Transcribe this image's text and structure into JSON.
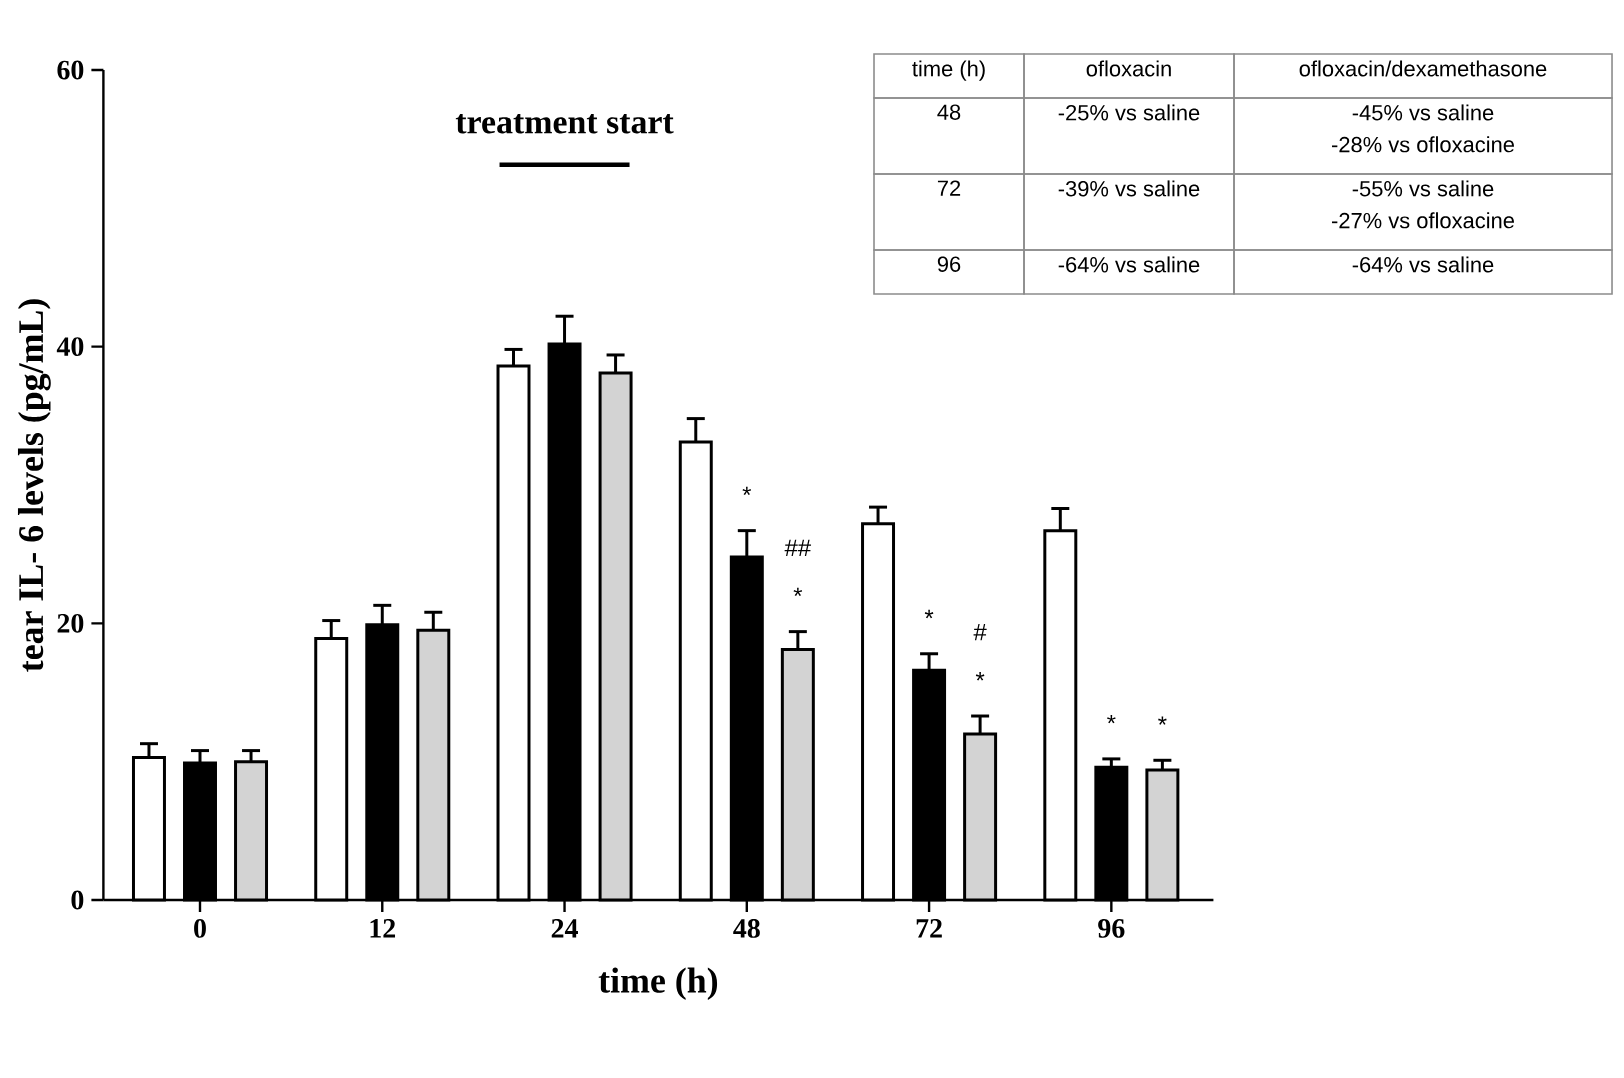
{
  "chart_data": {
    "type": "bar",
    "xlabel": "time (h)",
    "ylabel": "tear IL- 6 levels (pg/mL)",
    "categories": [
      "0",
      "12",
      "24",
      "48",
      "72",
      "96"
    ],
    "ylim": [
      0,
      60
    ],
    "yticks": [
      0,
      20,
      40,
      60
    ],
    "series": [
      {
        "color": "#ffffff",
        "values": [
          10.3,
          18.9,
          38.6,
          33.1,
          27.2,
          26.7
        ],
        "errors": [
          1.0,
          1.3,
          1.2,
          1.7,
          1.2,
          1.6
        ]
      },
      {
        "color": "#000000",
        "values": [
          9.9,
          19.9,
          40.2,
          24.8,
          16.6,
          9.6
        ],
        "errors": [
          0.9,
          1.4,
          2.0,
          1.9,
          1.2,
          0.6
        ]
      },
      {
        "color": "#d3d3d3",
        "values": [
          10.0,
          19.5,
          38.1,
          18.1,
          12.0,
          9.4
        ],
        "errors": [
          0.8,
          1.3,
          1.3,
          1.3,
          1.3,
          0.7
        ]
      }
    ],
    "grid": false,
    "annotations": [
      "treatment start",
      "*",
      "##",
      "*",
      "*",
      "#",
      "*",
      "*",
      "*",
      "time (h)",
      "ofloxacin",
      "ofloxacin/dexamethasone",
      "48",
      "-25% vs saline",
      "-45% vs saline",
      "-28% vs ofloxacine",
      "72",
      "-39% vs saline",
      "-55% vs saline",
      "-27% vs ofloxacine",
      "96",
      "-64% vs saline",
      "-64% vs saline"
    ]
  }
}
